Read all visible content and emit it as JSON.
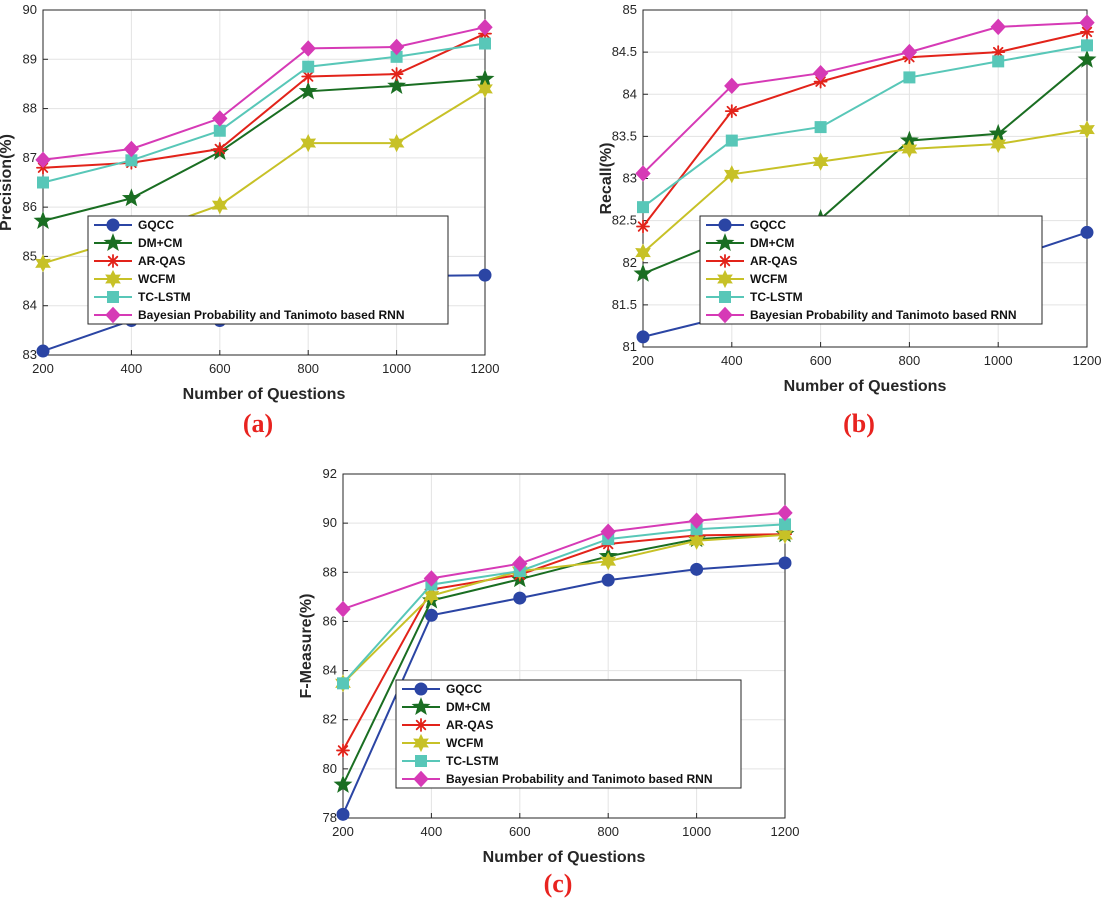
{
  "colors": {
    "GQCC": "#2b45a4",
    "DM+CM": "#1a6e22",
    "AR-QAS": "#e2231a",
    "WCFM": "#c7c127",
    "TC-LSTM": "#58c7b8",
    "Bayesian Probability and Tanimoto based RNN": "#d63ab6",
    "panel_label": "#e8231f"
  },
  "chart_data": [
    {
      "type": "line",
      "panel_label": "(a)",
      "xlabel": "Number of Questions",
      "ylabel": "Precision(%)",
      "x": [
        200,
        400,
        600,
        800,
        1000,
        1200
      ],
      "xticks": [
        "200",
        "400",
        "600",
        "800",
        "1000",
        "1200"
      ],
      "yticks": [
        "83",
        "84",
        "85",
        "86",
        "87",
        "88",
        "89",
        "90"
      ],
      "xlim": [
        200,
        1200
      ],
      "ylim": [
        83,
        90
      ],
      "grid": true,
      "legend": "lower-left",
      "series": [
        {
          "name": "GQCC",
          "marker": "circle",
          "values": [
            83.08,
            83.7,
            83.7,
            84.3,
            84.6,
            84.62
          ]
        },
        {
          "name": "DM+CM",
          "marker": "star",
          "values": [
            85.72,
            86.18,
            87.12,
            88.35,
            88.46,
            88.6
          ]
        },
        {
          "name": "AR-QAS",
          "marker": "asterisk",
          "values": [
            86.8,
            86.9,
            87.18,
            88.65,
            88.7,
            89.52
          ]
        },
        {
          "name": "WCFM",
          "marker": "hexagram",
          "values": [
            84.86,
            85.4,
            86.04,
            87.3,
            87.3,
            88.4
          ]
        },
        {
          "name": "TC-LSTM",
          "marker": "square",
          "values": [
            86.5,
            86.95,
            87.55,
            88.85,
            89.05,
            89.32
          ]
        },
        {
          "name": "Bayesian Probability and Tanimoto based RNN",
          "marker": "diamond",
          "values": [
            86.96,
            87.18,
            87.8,
            89.22,
            89.25,
            89.65
          ]
        }
      ]
    },
    {
      "type": "line",
      "panel_label": "(b)",
      "xlabel": "Number of Questions",
      "ylabel": "Recall(%)",
      "x": [
        200,
        400,
        600,
        800,
        1000,
        1200
      ],
      "xticks": [
        "200",
        "400",
        "600",
        "800",
        "1000",
        "1200"
      ],
      "yticks": [
        "81",
        "81.5",
        "82",
        "82.5",
        "83",
        "83.5",
        "84",
        "84.5",
        "85"
      ],
      "xlim": [
        200,
        1200
      ],
      "ylim": [
        81,
        85
      ],
      "grid": true,
      "legend": "lower-left",
      "series": [
        {
          "name": "GQCC",
          "marker": "circle",
          "values": [
            81.12,
            81.38,
            81.47,
            81.97,
            82.01,
            82.36
          ]
        },
        {
          "name": "DM+CM",
          "marker": "star",
          "values": [
            81.87,
            82.3,
            82.52,
            83.45,
            83.53,
            84.41
          ]
        },
        {
          "name": "AR-QAS",
          "marker": "asterisk",
          "values": [
            82.43,
            83.8,
            84.15,
            84.44,
            84.5,
            84.74
          ]
        },
        {
          "name": "WCFM",
          "marker": "hexagram",
          "values": [
            82.12,
            83.05,
            83.2,
            83.35,
            83.41,
            83.58
          ]
        },
        {
          "name": "TC-LSTM",
          "marker": "square",
          "values": [
            82.66,
            83.45,
            83.61,
            84.2,
            84.39,
            84.58
          ]
        },
        {
          "name": "Bayesian Probability and Tanimoto based RNN",
          "marker": "diamond",
          "values": [
            83.06,
            84.1,
            84.25,
            84.5,
            84.8,
            84.85
          ]
        }
      ]
    },
    {
      "type": "line",
      "panel_label": "(c)",
      "xlabel": "Number of Questions",
      "ylabel": "F-Measure(%)",
      "x": [
        200,
        400,
        600,
        800,
        1000,
        1200
      ],
      "xticks": [
        "200",
        "400",
        "600",
        "800",
        "1000",
        "1200"
      ],
      "yticks": [
        "78",
        "80",
        "82",
        "84",
        "86",
        "88",
        "90",
        "92"
      ],
      "xlim": [
        200,
        1200
      ],
      "ylim": [
        78,
        92
      ],
      "grid": true,
      "legend": "lower-center",
      "series": [
        {
          "name": "GQCC",
          "marker": "circle",
          "values": [
            78.15,
            86.25,
            86.95,
            87.68,
            88.12,
            88.38
          ]
        },
        {
          "name": "DM+CM",
          "marker": "star",
          "values": [
            79.35,
            86.85,
            87.72,
            88.65,
            89.35,
            89.55
          ]
        },
        {
          "name": "AR-QAS",
          "marker": "asterisk",
          "values": [
            80.75,
            87.3,
            87.9,
            89.15,
            89.5,
            89.55
          ]
        },
        {
          "name": "WCFM",
          "marker": "hexagram",
          "values": [
            83.48,
            87.05,
            88.05,
            88.45,
            89.28,
            89.52
          ]
        },
        {
          "name": "TC-LSTM",
          "marker": "square",
          "values": [
            83.48,
            87.5,
            88.05,
            89.35,
            89.75,
            89.95
          ]
        },
        {
          "name": "Bayesian Probability and Tanimoto based RNN",
          "marker": "diamond",
          "values": [
            86.5,
            87.75,
            88.35,
            89.65,
            90.1,
            90.42
          ]
        }
      ]
    }
  ]
}
